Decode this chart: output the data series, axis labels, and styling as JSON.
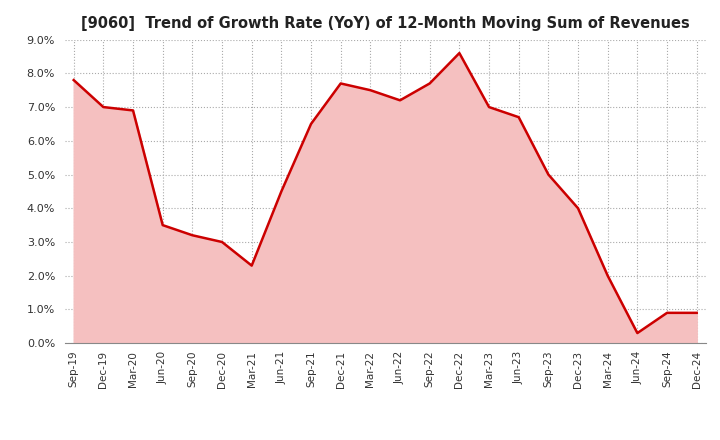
{
  "title": "[9060]  Trend of Growth Rate (YoY) of 12-Month Moving Sum of Revenues",
  "x_labels": [
    "Sep-19",
    "Dec-19",
    "Mar-20",
    "Jun-20",
    "Sep-20",
    "Dec-20",
    "Mar-21",
    "Jun-21",
    "Sep-21",
    "Dec-21",
    "Mar-22",
    "Jun-22",
    "Sep-22",
    "Dec-22",
    "Mar-23",
    "Jun-23",
    "Sep-23",
    "Dec-23",
    "Mar-24",
    "Jun-24",
    "Sep-24",
    "Dec-24"
  ],
  "y_values": [
    0.078,
    0.07,
    0.069,
    0.035,
    0.032,
    0.03,
    0.023,
    0.045,
    0.065,
    0.077,
    0.075,
    0.072,
    0.077,
    0.086,
    0.07,
    0.067,
    0.05,
    0.04,
    0.02,
    0.003,
    0.009,
    0.009
  ],
  "line_color": "#cc0000",
  "fill_color": "#f5c0c0",
  "background_color": "#ffffff",
  "plot_bg_color": "#ffffff",
  "grid_color": "#aaaaaa",
  "title_color": "#222222",
  "ylim": [
    0.0,
    0.09
  ],
  "yticks": [
    0.0,
    0.01,
    0.02,
    0.03,
    0.04,
    0.05,
    0.06,
    0.07,
    0.08,
    0.09
  ]
}
